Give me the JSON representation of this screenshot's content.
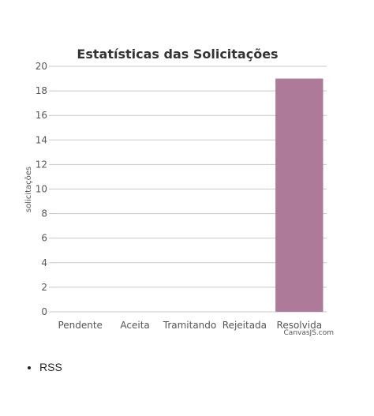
{
  "chart_data": {
    "type": "bar",
    "title": "Estatísticas das Solicitações",
    "xlabel": "",
    "ylabel": "solicitações",
    "categories": [
      "Pendente",
      "Aceita",
      "Tramitando",
      "Rejeitada",
      "Resolvida"
    ],
    "values": [
      0,
      0,
      0,
      0,
      19
    ],
    "ylim": [
      0,
      20
    ],
    "yticks": [
      0,
      2,
      4,
      6,
      8,
      10,
      12,
      14,
      16,
      18,
      20
    ],
    "grid": true,
    "bar_color": "#ad7b99",
    "gridline_color": "#c8c8c8",
    "credit": "CanvasJS.com"
  },
  "links": [
    {
      "label": "RSS"
    }
  ]
}
